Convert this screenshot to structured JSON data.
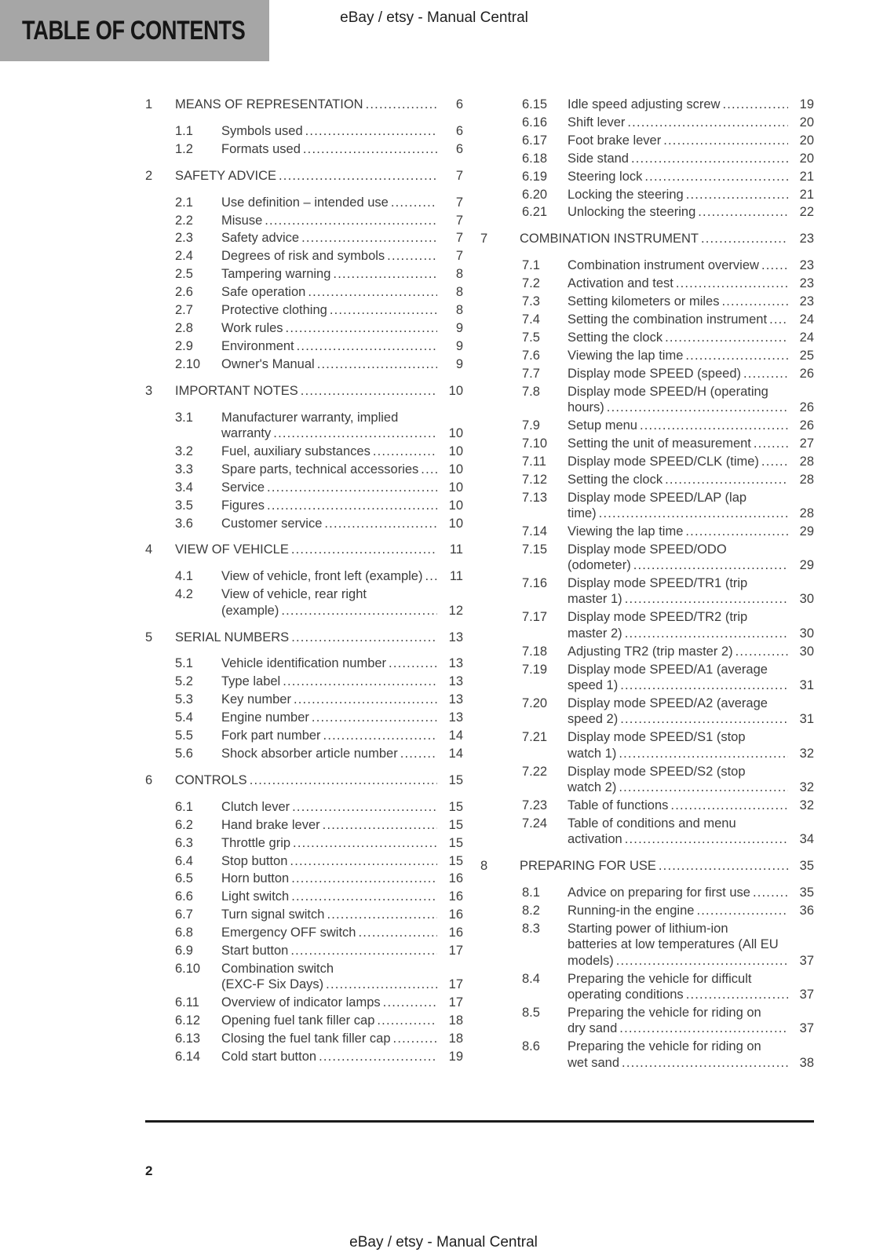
{
  "page": {
    "header_title": "TABLE OF CONTENTS",
    "header_center": "eBay / etsy - Manual Central",
    "footer_center": "eBay / etsy - Manual Central",
    "page_number": "2"
  },
  "colors": {
    "header_box_gray": "#a6a6a6",
    "body_text": "#3c3c3c",
    "rule_black": "#1b1b1b"
  },
  "toc": {
    "columns": [
      {
        "entries": [
          {
            "level": 1,
            "num": "1",
            "lines": [
              "MEANS OF REPRESENTATION"
            ],
            "page": "6"
          },
          {
            "level": 2,
            "num": "1.1",
            "lines": [
              "Symbols used"
            ],
            "page": "6"
          },
          {
            "level": 2,
            "num": "1.2",
            "lines": [
              "Formats used"
            ],
            "page": "6"
          },
          {
            "level": 1,
            "num": "2",
            "lines": [
              "SAFETY ADVICE"
            ],
            "page": "7"
          },
          {
            "level": 2,
            "num": "2.1",
            "lines": [
              "Use definition – intended use"
            ],
            "page": "7"
          },
          {
            "level": 2,
            "num": "2.2",
            "lines": [
              "Misuse"
            ],
            "page": "7"
          },
          {
            "level": 2,
            "num": "2.3",
            "lines": [
              "Safety advice"
            ],
            "page": "7"
          },
          {
            "level": 2,
            "num": "2.4",
            "lines": [
              "Degrees of risk and symbols"
            ],
            "page": "7"
          },
          {
            "level": 2,
            "num": "2.5",
            "lines": [
              "Tampering warning"
            ],
            "page": "8"
          },
          {
            "level": 2,
            "num": "2.6",
            "lines": [
              "Safe operation"
            ],
            "page": "8"
          },
          {
            "level": 2,
            "num": "2.7",
            "lines": [
              "Protective clothing"
            ],
            "page": "8"
          },
          {
            "level": 2,
            "num": "2.8",
            "lines": [
              "Work rules"
            ],
            "page": "9"
          },
          {
            "level": 2,
            "num": "2.9",
            "lines": [
              "Environment"
            ],
            "page": "9"
          },
          {
            "level": 2,
            "num": "2.10",
            "lines": [
              "Owner's Manual"
            ],
            "page": "9"
          },
          {
            "level": 1,
            "num": "3",
            "lines": [
              "IMPORTANT NOTES"
            ],
            "page": "10"
          },
          {
            "level": 2,
            "num": "3.1",
            "lines": [
              "Manufacturer warranty, implied",
              "warranty"
            ],
            "page": "10"
          },
          {
            "level": 2,
            "num": "3.2",
            "lines": [
              "Fuel, auxiliary substances"
            ],
            "page": "10"
          },
          {
            "level": 2,
            "num": "3.3",
            "lines": [
              "Spare parts, technical accessories"
            ],
            "page": "10"
          },
          {
            "level": 2,
            "num": "3.4",
            "lines": [
              "Service"
            ],
            "page": "10"
          },
          {
            "level": 2,
            "num": "3.5",
            "lines": [
              "Figures"
            ],
            "page": "10"
          },
          {
            "level": 2,
            "num": "3.6",
            "lines": [
              "Customer service"
            ],
            "page": "10"
          },
          {
            "level": 1,
            "num": "4",
            "lines": [
              "VIEW OF VEHICLE"
            ],
            "page": "11"
          },
          {
            "level": 2,
            "num": "4.1",
            "lines": [
              "View of vehicle, front left (example)"
            ],
            "page": "11"
          },
          {
            "level": 2,
            "num": "4.2",
            "lines": [
              "View of vehicle, rear right",
              "(example)"
            ],
            "page": "12"
          },
          {
            "level": 1,
            "num": "5",
            "lines": [
              "SERIAL NUMBERS"
            ],
            "page": "13"
          },
          {
            "level": 2,
            "num": "5.1",
            "lines": [
              "Vehicle identification number"
            ],
            "page": "13"
          },
          {
            "level": 2,
            "num": "5.2",
            "lines": [
              "Type label"
            ],
            "page": "13"
          },
          {
            "level": 2,
            "num": "5.3",
            "lines": [
              "Key number"
            ],
            "page": "13"
          },
          {
            "level": 2,
            "num": "5.4",
            "lines": [
              "Engine number"
            ],
            "page": "13"
          },
          {
            "level": 2,
            "num": "5.5",
            "lines": [
              "Fork part number"
            ],
            "page": "14"
          },
          {
            "level": 2,
            "num": "5.6",
            "lines": [
              "Shock absorber article number"
            ],
            "page": "14"
          },
          {
            "level": 1,
            "num": "6",
            "lines": [
              "CONTROLS"
            ],
            "page": "15"
          },
          {
            "level": 2,
            "num": "6.1",
            "lines": [
              "Clutch lever"
            ],
            "page": "15"
          },
          {
            "level": 2,
            "num": "6.2",
            "lines": [
              "Hand brake lever"
            ],
            "page": "15"
          },
          {
            "level": 2,
            "num": "6.3",
            "lines": [
              "Throttle grip"
            ],
            "page": "15"
          },
          {
            "level": 2,
            "num": "6.4",
            "lines": [
              "Stop button"
            ],
            "page": "15"
          },
          {
            "level": 2,
            "num": "6.5",
            "lines": [
              "Horn button"
            ],
            "page": "16"
          },
          {
            "level": 2,
            "num": "6.6",
            "lines": [
              "Light switch"
            ],
            "page": "16"
          },
          {
            "level": 2,
            "num": "6.7",
            "lines": [
              "Turn signal switch"
            ],
            "page": "16"
          },
          {
            "level": 2,
            "num": "6.8",
            "lines": [
              "Emergency OFF switch"
            ],
            "page": "16"
          },
          {
            "level": 2,
            "num": "6.9",
            "lines": [
              "Start button"
            ],
            "page": "17"
          },
          {
            "level": 2,
            "num": "6.10",
            "lines": [
              "Combination switch",
              "(EXC-F Six Days)"
            ],
            "page": "17"
          },
          {
            "level": 2,
            "num": "6.11",
            "lines": [
              "Overview of indicator lamps"
            ],
            "page": "17"
          },
          {
            "level": 2,
            "num": "6.12",
            "lines": [
              "Opening fuel tank filler cap"
            ],
            "page": "18"
          },
          {
            "level": 2,
            "num": "6.13",
            "lines": [
              "Closing the fuel tank filler cap"
            ],
            "page": "18"
          },
          {
            "level": 2,
            "num": "6.14",
            "lines": [
              "Cold start button"
            ],
            "page": "19"
          }
        ]
      },
      {
        "entries": [
          {
            "level": 2,
            "num": "6.15",
            "lines": [
              "Idle speed adjusting screw"
            ],
            "page": "19"
          },
          {
            "level": 2,
            "num": "6.16",
            "lines": [
              "Shift lever"
            ],
            "page": "20"
          },
          {
            "level": 2,
            "num": "6.17",
            "lines": [
              "Foot brake lever"
            ],
            "page": "20"
          },
          {
            "level": 2,
            "num": "6.18",
            "lines": [
              "Side stand"
            ],
            "page": "20"
          },
          {
            "level": 2,
            "num": "6.19",
            "lines": [
              "Steering lock"
            ],
            "page": "21"
          },
          {
            "level": 2,
            "num": "6.20",
            "lines": [
              "Locking the steering"
            ],
            "page": "21"
          },
          {
            "level": 2,
            "num": "6.21",
            "lines": [
              "Unlocking the steering"
            ],
            "page": "22"
          },
          {
            "level": 1,
            "num": "7",
            "lines": [
              "COMBINATION INSTRUMENT"
            ],
            "page": "23"
          },
          {
            "level": 2,
            "num": "7.1",
            "lines": [
              "Combination instrument overview"
            ],
            "page": "23"
          },
          {
            "level": 2,
            "num": "7.2",
            "lines": [
              "Activation and test"
            ],
            "page": "23"
          },
          {
            "level": 2,
            "num": "7.3",
            "lines": [
              "Setting kilometers or miles"
            ],
            "page": "23"
          },
          {
            "level": 2,
            "num": "7.4",
            "lines": [
              "Setting the combination instrument"
            ],
            "page": "24"
          },
          {
            "level": 2,
            "num": "7.5",
            "lines": [
              "Setting the clock"
            ],
            "page": "24"
          },
          {
            "level": 2,
            "num": "7.6",
            "lines": [
              "Viewing the lap time"
            ],
            "page": "25"
          },
          {
            "level": 2,
            "num": "7.7",
            "lines": [
              "Display mode SPEED (speed)"
            ],
            "page": "26"
          },
          {
            "level": 2,
            "num": "7.8",
            "lines": [
              "Display mode SPEED/H (operating",
              "hours)"
            ],
            "page": "26"
          },
          {
            "level": 2,
            "num": "7.9",
            "lines": [
              "Setup menu"
            ],
            "page": "26"
          },
          {
            "level": 2,
            "num": "7.10",
            "lines": [
              "Setting the unit of measurement"
            ],
            "page": "27"
          },
          {
            "level": 2,
            "num": "7.11",
            "lines": [
              "Display mode SPEED/CLK (time)"
            ],
            "page": "28"
          },
          {
            "level": 2,
            "num": "7.12",
            "lines": [
              "Setting the clock"
            ],
            "page": "28"
          },
          {
            "level": 2,
            "num": "7.13",
            "lines": [
              "Display mode SPEED/LAP (lap",
              "time)"
            ],
            "page": "28"
          },
          {
            "level": 2,
            "num": "7.14",
            "lines": [
              "Viewing the lap time"
            ],
            "page": "29"
          },
          {
            "level": 2,
            "num": "7.15",
            "lines": [
              "Display mode SPEED/ODO",
              "(odometer)"
            ],
            "page": "29"
          },
          {
            "level": 2,
            "num": "7.16",
            "lines": [
              "Display mode SPEED/TR1 (trip",
              "master 1)"
            ],
            "page": "30"
          },
          {
            "level": 2,
            "num": "7.17",
            "lines": [
              "Display mode SPEED/TR2 (trip",
              "master 2)"
            ],
            "page": "30"
          },
          {
            "level": 2,
            "num": "7.18",
            "lines": [
              "Adjusting TR2 (trip master 2)"
            ],
            "page": "30"
          },
          {
            "level": 2,
            "num": "7.19",
            "lines": [
              "Display mode SPEED/A1 (average",
              "speed 1)"
            ],
            "page": "31"
          },
          {
            "level": 2,
            "num": "7.20",
            "lines": [
              "Display mode SPEED/A2 (average",
              "speed 2)"
            ],
            "page": "31"
          },
          {
            "level": 2,
            "num": "7.21",
            "lines": [
              "Display mode SPEED/S1 (stop",
              "watch 1)"
            ],
            "page": "32"
          },
          {
            "level": 2,
            "num": "7.22",
            "lines": [
              "Display mode SPEED/S2 (stop",
              "watch 2)"
            ],
            "page": "32"
          },
          {
            "level": 2,
            "num": "7.23",
            "lines": [
              "Table of functions"
            ],
            "page": "32"
          },
          {
            "level": 2,
            "num": "7.24",
            "lines": [
              "Table of conditions and menu",
              "activation"
            ],
            "page": "34"
          },
          {
            "level": 1,
            "num": "8",
            "lines": [
              "PREPARING FOR USE"
            ],
            "page": "35"
          },
          {
            "level": 2,
            "num": "8.1",
            "lines": [
              "Advice on preparing for first use"
            ],
            "page": "35"
          },
          {
            "level": 2,
            "num": "8.2",
            "lines": [
              "Running-in the engine"
            ],
            "page": "36"
          },
          {
            "level": 2,
            "num": "8.3",
            "lines": [
              "Starting power of lithium-ion",
              "batteries at low temperatures (All EU",
              "models)"
            ],
            "page": "37"
          },
          {
            "level": 2,
            "num": "8.4",
            "lines": [
              "Preparing the vehicle for difficult",
              "operating conditions"
            ],
            "page": "37"
          },
          {
            "level": 2,
            "num": "8.5",
            "lines": [
              "Preparing the vehicle for riding on",
              "dry sand"
            ],
            "page": "37"
          },
          {
            "level": 2,
            "num": "8.6",
            "lines": [
              "Preparing the vehicle for riding on",
              "wet sand"
            ],
            "page": "38"
          }
        ]
      }
    ]
  }
}
